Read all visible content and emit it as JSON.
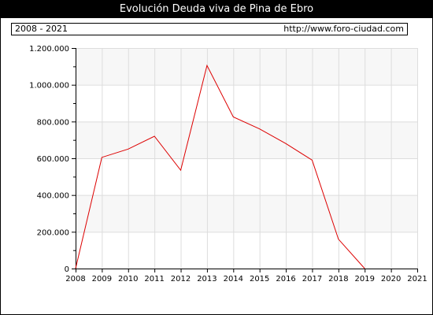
{
  "header": {
    "title": "Evolución Deuda viva de Pina de Ebro",
    "period": "2008 - 2021",
    "source": "http://www.foro-ciudad.com"
  },
  "colors": {
    "line": "#dd0000",
    "band": "#f7f7f7",
    "grid": "#dddddd",
    "axis": "#000000"
  },
  "chart_data": {
    "type": "line",
    "title": "Evolución Deuda viva de Pina de Ebro",
    "xlabel": "",
    "ylabel": "",
    "x": [
      2008,
      2009,
      2010,
      2011,
      2012,
      2013,
      2014,
      2015,
      2016,
      2017,
      2018,
      2019
    ],
    "series": [
      {
        "values": [
          0,
          605000,
          650000,
          720000,
          535000,
          1105000,
          825000,
          760000,
          680000,
          590000,
          160000,
          0
        ]
      }
    ],
    "x_ticks": [
      2008,
      2009,
      2010,
      2011,
      2012,
      2013,
      2014,
      2015,
      2016,
      2017,
      2018,
      2019,
      2020,
      2021
    ],
    "x_tick_labels": [
      "2008",
      "2009",
      "2010",
      "2011",
      "2012",
      "2013",
      "2014",
      "2015",
      "2016",
      "2017",
      "2018",
      "2019",
      "2020",
      "2021"
    ],
    "y_ticks": [
      0,
      200000,
      400000,
      600000,
      800000,
      1000000,
      1200000
    ],
    "y_tick_labels": [
      "0",
      "200.000",
      "400.000",
      "600.000",
      "800.000",
      "1.000.000",
      "1.200.000"
    ],
    "xlim": [
      2008,
      2021
    ],
    "ylim": [
      0,
      1200000
    ],
    "grid": true,
    "legend": "none"
  }
}
